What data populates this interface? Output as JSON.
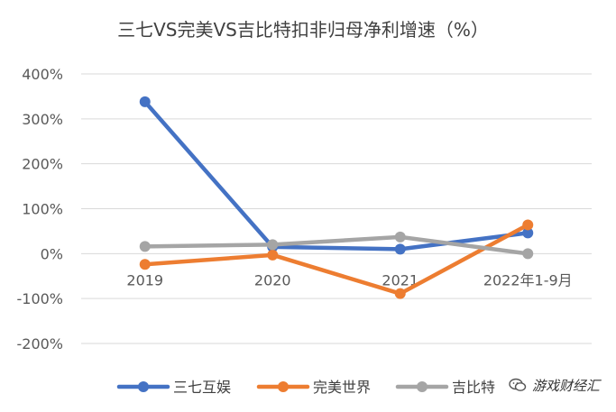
{
  "chart_data": {
    "type": "line",
    "title": "三七VS完美VS吉比特扣非归母净利增速（%）",
    "categories": [
      "2019",
      "2020",
      "2021",
      "2022年1-9月"
    ],
    "series": [
      {
        "name": "三七互娱",
        "color": "#4472c4",
        "values": [
          338,
          15,
          10,
          46
        ]
      },
      {
        "name": "完美世界",
        "color": "#ed7d31",
        "values": [
          -24,
          -3,
          -89,
          64
        ]
      },
      {
        "name": "吉比特",
        "color": "#a5a5a5",
        "values": [
          16,
          20,
          37,
          0
        ]
      }
    ],
    "yticks": [
      400,
      300,
      200,
      100,
      0,
      -100,
      -200
    ],
    "ytick_labels": [
      "400%",
      "300%",
      "200%",
      "100%",
      "0%",
      "-100%",
      "-200%"
    ],
    "ylim": [
      -200,
      400
    ],
    "xlabel": "",
    "ylabel": "",
    "grid": true,
    "legend_position": "bottom"
  },
  "watermark": {
    "text": "游戏财经汇",
    "icon": "wechat-icon"
  }
}
